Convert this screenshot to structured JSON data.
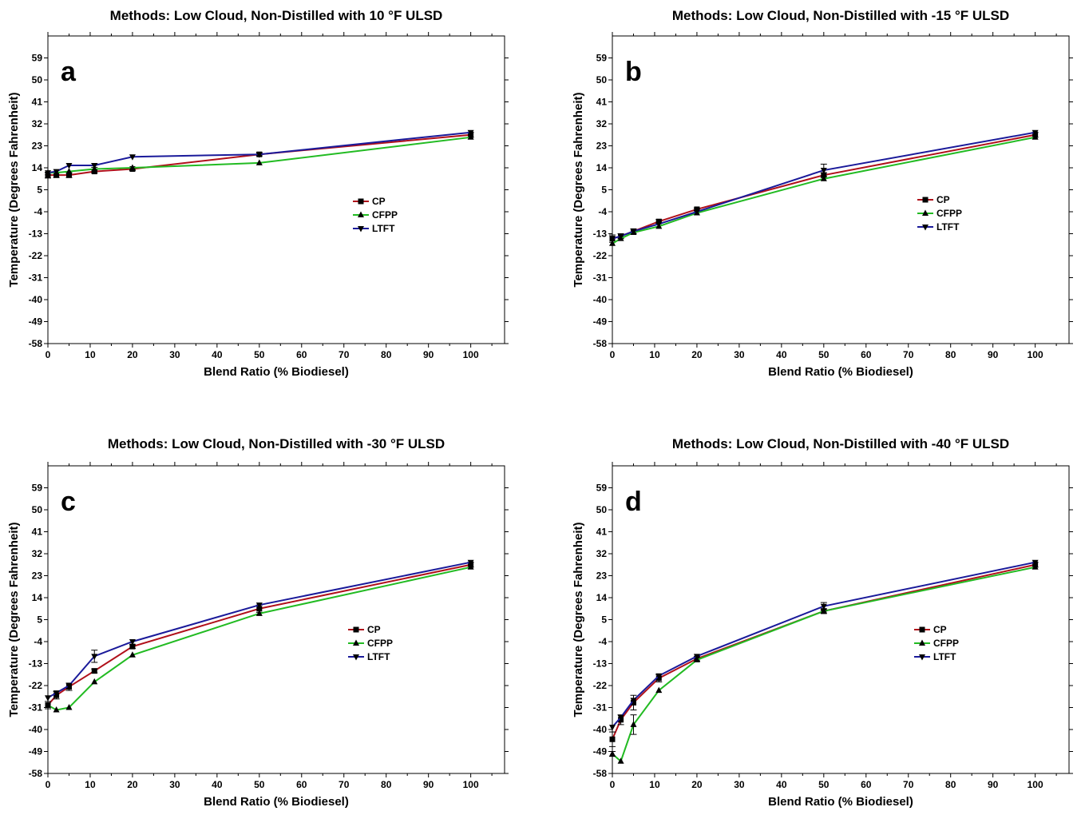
{
  "colors": {
    "CP": "#b0101a",
    "CFPP": "#22bb22",
    "LTFT": "#1a1a9a"
  },
  "chart_data": [
    {
      "type": "line",
      "panel_label": "a",
      "title": "Methods:  Low Cloud, Non-Distilled with 10 °F ULSD",
      "xlabel": "Blend Ratio (% Biodiesel)",
      "ylabel": "Temperature (Degrees Fahrenheit)",
      "xlim": [
        0,
        108
      ],
      "ylim": [
        -58,
        68
      ],
      "xticks": [
        0,
        10,
        20,
        30,
        40,
        50,
        60,
        70,
        80,
        90,
        100
      ],
      "yticks": [
        -58,
        -49,
        -40,
        -31,
        -22,
        -13,
        -4,
        5,
        14,
        23,
        32,
        41,
        50,
        59
      ],
      "legend_position": "right",
      "grid": false,
      "series": [
        {
          "name": "CP",
          "x": [
            0,
            2,
            5,
            11,
            20,
            50,
            100
          ],
          "y": [
            11,
            11,
            11,
            12.5,
            13.5,
            19.5,
            27.5
          ],
          "err": [
            1.2,
            1,
            1,
            0.6,
            0.6,
            0.6,
            1
          ]
        },
        {
          "name": "CFPP",
          "x": [
            0,
            2,
            5,
            11,
            20,
            50,
            100
          ],
          "y": [
            12,
            12,
            12.5,
            13.5,
            14,
            16,
            26.5
          ],
          "err": [
            0,
            0,
            0,
            0,
            0,
            0,
            0
          ]
        },
        {
          "name": "LTFT",
          "x": [
            0,
            2,
            5,
            11,
            20,
            50,
            100
          ],
          "y": [
            12,
            12.5,
            15,
            15,
            18.5,
            19.5,
            28.5
          ],
          "err": [
            0,
            0,
            0,
            0.8,
            0,
            0,
            0
          ]
        }
      ]
    },
    {
      "type": "line",
      "panel_label": "b",
      "title": "Methods:  Low Cloud, Non-Distilled with -15 °F ULSD",
      "xlabel": "Blend Ratio (% Biodiesel)",
      "ylabel": "Temperature (Degrees Fahrenheit)",
      "xlim": [
        0,
        108
      ],
      "ylim": [
        -58,
        68
      ],
      "xticks": [
        0,
        10,
        20,
        30,
        40,
        50,
        60,
        70,
        80,
        90,
        100
      ],
      "yticks": [
        -58,
        -49,
        -40,
        -31,
        -22,
        -13,
        -4,
        5,
        14,
        23,
        32,
        41,
        50,
        59
      ],
      "legend_position": "right",
      "grid": false,
      "series": [
        {
          "name": "CP",
          "x": [
            0,
            2,
            5,
            11,
            20,
            50,
            100
          ],
          "y": [
            -15,
            -14,
            -12,
            -8,
            -3,
            11,
            27.5
          ],
          "err": [
            1.5,
            1,
            1,
            0.8,
            0.5,
            1,
            1
          ]
        },
        {
          "name": "CFPP",
          "x": [
            0,
            2,
            5,
            11,
            20,
            50,
            100
          ],
          "y": [
            -17,
            -15,
            -12.5,
            -10,
            -4.5,
            9.5,
            26.5
          ],
          "err": [
            0,
            0,
            0,
            0,
            0,
            0,
            0
          ]
        },
        {
          "name": "LTFT",
          "x": [
            0,
            2,
            5,
            11,
            20,
            50,
            100
          ],
          "y": [
            -15,
            -14,
            -12,
            -9,
            -4,
            13,
            28.5
          ],
          "err": [
            0,
            0,
            0,
            0,
            0,
            2.5,
            0
          ]
        }
      ]
    },
    {
      "type": "line",
      "panel_label": "c",
      "title": "Methods:  Low Cloud, Non-Distilled with -30 °F ULSD",
      "xlabel": "Blend Ratio (% Biodiesel)",
      "ylabel": "Temperature (Degrees Fahrenheit)",
      "xlim": [
        0,
        108
      ],
      "ylim": [
        -58,
        68
      ],
      "xticks": [
        0,
        10,
        20,
        30,
        40,
        50,
        60,
        70,
        80,
        90,
        100
      ],
      "yticks": [
        -58,
        -49,
        -40,
        -31,
        -22,
        -13,
        -4,
        5,
        14,
        23,
        32,
        41,
        50,
        59
      ],
      "legend_position": "right",
      "grid": false,
      "series": [
        {
          "name": "CP",
          "x": [
            0,
            2,
            5,
            11,
            20,
            50,
            100
          ],
          "y": [
            -30,
            -26,
            -22.5,
            -16,
            -6,
            9.5,
            27.5
          ],
          "err": [
            1.5,
            1.5,
            1.5,
            0.8,
            0.8,
            1.5,
            1
          ]
        },
        {
          "name": "CFPP",
          "x": [
            0,
            2,
            5,
            11,
            20,
            50,
            100
          ],
          "y": [
            -30,
            -32,
            -31,
            -20.5,
            -9.5,
            7.5,
            26.5
          ],
          "err": [
            0,
            0,
            0,
            0,
            0,
            0,
            0
          ]
        },
        {
          "name": "LTFT",
          "x": [
            0,
            2,
            5,
            11,
            20,
            50,
            100
          ],
          "y": [
            -27,
            -25,
            -22,
            -10,
            -4,
            11,
            28.5
          ],
          "err": [
            0,
            0,
            0,
            2.5,
            0,
            0,
            0
          ]
        }
      ]
    },
    {
      "type": "line",
      "panel_label": "d",
      "title": "Methods:  Low Cloud, Non-Distilled with -40 °F ULSD",
      "xlabel": "Blend Ratio (% Biodiesel)",
      "ylabel": "Temperature (Degrees Fahrenheit)",
      "xlim": [
        0,
        108
      ],
      "ylim": [
        -58,
        68
      ],
      "xticks": [
        0,
        10,
        20,
        30,
        40,
        50,
        60,
        70,
        80,
        90,
        100
      ],
      "yticks": [
        -58,
        -49,
        -40,
        -31,
        -22,
        -13,
        -4,
        5,
        14,
        23,
        32,
        41,
        50,
        59
      ],
      "legend_position": "right",
      "grid": false,
      "series": [
        {
          "name": "CP",
          "x": [
            0,
            2,
            5,
            11,
            20,
            50,
            100
          ],
          "y": [
            -44,
            -36,
            -29,
            -19,
            -11,
            8.5,
            27.5
          ],
          "err": [
            3,
            2,
            3,
            1.5,
            1,
            1,
            1
          ]
        },
        {
          "name": "CFPP",
          "x": [
            0,
            2,
            5,
            11,
            20,
            50,
            100
          ],
          "y": [
            -50,
            -53,
            -38,
            -24,
            -11.5,
            8.5,
            26.5
          ],
          "err": [
            1,
            0,
            4,
            0,
            0,
            0,
            0
          ]
        },
        {
          "name": "LTFT",
          "x": [
            0,
            2,
            5,
            11,
            20,
            50,
            100
          ],
          "y": [
            -39,
            -35,
            -28,
            -18,
            -10,
            10.5,
            28.5
          ],
          "err": [
            0,
            0,
            0,
            0,
            0,
            1.5,
            0
          ]
        }
      ]
    }
  ]
}
